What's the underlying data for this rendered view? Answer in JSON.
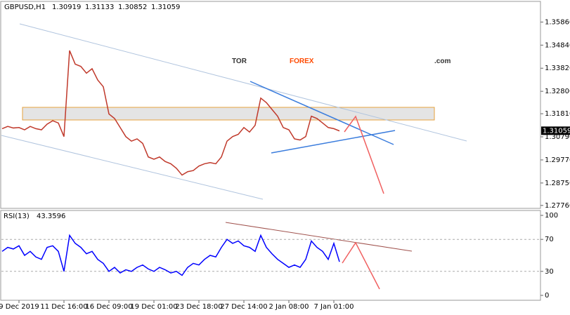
{
  "logo": {
    "parts": [
      "TOR",
      "FOREX",
      ".com"
    ]
  },
  "chart_data": [
    {
      "type": "line",
      "title": "GBPUSD,H1",
      "header_values": [
        1.30919,
        1.31133,
        1.30852,
        1.31059
      ],
      "last_price": {
        "value": 1.31059,
        "label": "1.31059"
      },
      "categories": [
        null,
        null,
        null,
        "9 Dec 2019",
        null,
        null,
        null,
        null,
        null,
        null,
        null,
        "11 Dec 16:00",
        null,
        null,
        null,
        null,
        null,
        null,
        null,
        "16 Dec 09:00",
        null,
        null,
        null,
        null,
        null,
        null,
        null,
        "19 Dec 01:00",
        null,
        null,
        null,
        null,
        null,
        null,
        null,
        "23 Dec 18:00",
        null,
        null,
        null,
        null,
        null,
        null,
        null,
        "27 Dec 14:00",
        null,
        null,
        null,
        null,
        null,
        null,
        null,
        "2 Jan 08:00",
        null,
        null,
        null,
        null,
        null,
        null,
        null,
        "7 Jan 01:00",
        null
      ],
      "values": [
        1.3115,
        1.3125,
        1.3118,
        1.312,
        1.311,
        1.3125,
        1.3115,
        1.311,
        1.3135,
        1.315,
        1.314,
        1.308,
        1.346,
        1.34,
        1.339,
        1.336,
        1.338,
        1.333,
        1.33,
        1.318,
        1.316,
        1.312,
        1.308,
        1.306,
        1.307,
        1.305,
        1.299,
        1.298,
        1.299,
        1.297,
        1.296,
        1.294,
        1.291,
        1.2925,
        1.293,
        1.295,
        1.296,
        1.2965,
        1.296,
        1.299,
        1.306,
        1.308,
        1.309,
        1.312,
        1.31,
        1.313,
        1.325,
        1.323,
        1.32,
        1.317,
        1.312,
        1.311,
        1.307,
        1.3065,
        1.308,
        1.317,
        1.316,
        1.314,
        1.312,
        1.3115,
        1.3105
      ],
      "color": "#c0392b",
      "ylim": [
        1.2763,
        1.3674
      ],
      "yticks": [
        {
          "value": 1.2776,
          "label": "1.27760"
        },
        {
          "value": 1.2875,
          "label": "1.28750"
        },
        {
          "value": 1.2977,
          "label": "1.29770"
        },
        {
          "value": 1.3079,
          "label": "1.30790"
        },
        {
          "value": 1.3181,
          "label": "1.31810"
        },
        {
          "value": 1.328,
          "label": "1.32800"
        },
        {
          "value": 1.3382,
          "label": "1.33820"
        },
        {
          "value": 1.3484,
          "label": "1.34840"
        },
        {
          "value": 1.3586,
          "label": "1.35860"
        }
      ]
    },
    {
      "type": "line",
      "title": "RSI(13)",
      "current": 43.3596,
      "values": [
        55,
        60,
        58,
        62,
        50,
        55,
        48,
        45,
        60,
        62,
        55,
        30,
        75,
        65,
        60,
        52,
        55,
        45,
        40,
        30,
        35,
        28,
        32,
        30,
        35,
        38,
        33,
        30,
        35,
        32,
        28,
        30,
        25,
        35,
        40,
        38,
        45,
        50,
        48,
        60,
        70,
        65,
        68,
        62,
        60,
        55,
        75,
        60,
        52,
        45,
        40,
        35,
        38,
        35,
        45,
        68,
        60,
        55,
        45,
        65,
        42
      ],
      "color": "#0000ff",
      "ylim": [
        0,
        100
      ],
      "yticks": [
        0,
        30,
        70,
        100
      ]
    }
  ]
}
